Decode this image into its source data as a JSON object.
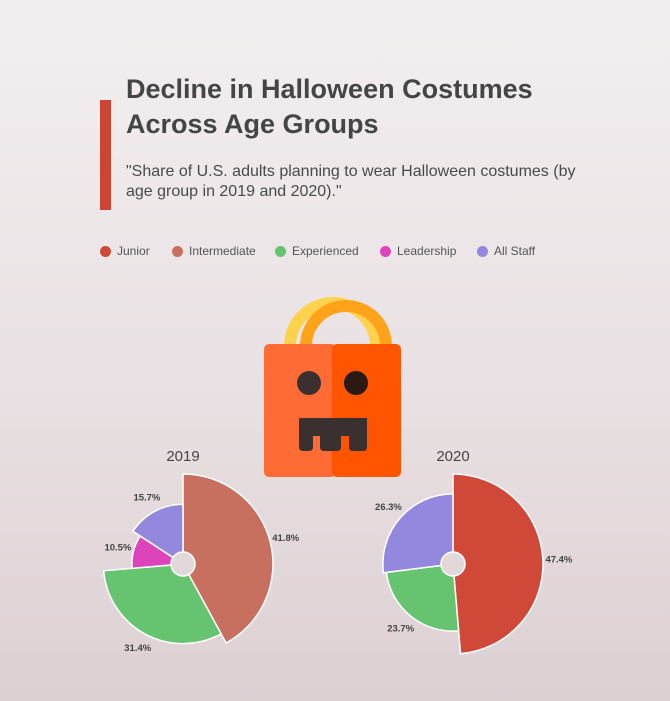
{
  "title": "Decline in Halloween Costumes Across Age Groups",
  "subtitle": "\"Share of U.S. adults planning to wear Halloween costumes (by age group in 2019 and 2020).\"",
  "colors": {
    "accent": "#cc4433",
    "bag_left": "#ff6b35",
    "bag_right": "#ff5500",
    "handle_left": "#ffd24d",
    "handle_right": "#ffa31a"
  },
  "decoration": {
    "icon": "halloween-bag-icon"
  },
  "chart_data": {
    "type": "pie",
    "variant": "radius-scaled pie (nightingale-style) with small hole",
    "legend": [
      {
        "name": "Junior",
        "color": "#d04838"
      },
      {
        "name": "Intermediate",
        "color": "#c87060"
      },
      {
        "name": "Experienced",
        "color": "#66c370"
      },
      {
        "name": "Leadership",
        "color": "#dd44bb"
      },
      {
        "name": "All Staff",
        "color": "#9388dd"
      }
    ],
    "charts": [
      {
        "title": "2019",
        "slices": [
          {
            "name": "Intermediate",
            "value": 41.8,
            "label": "41.8%"
          },
          {
            "name": "Experienced",
            "value": 31.4,
            "label": "31.4%"
          },
          {
            "name": "Leadership",
            "value": 10.5,
            "label": "10.5%"
          },
          {
            "name": "All Staff",
            "value": 15.7,
            "label": "15.7%"
          }
        ]
      },
      {
        "title": "2020",
        "slices": [
          {
            "name": "Junior",
            "value": 47.4,
            "label": "47.4%"
          },
          {
            "name": "Experienced",
            "value": 23.7,
            "label": "23.7%"
          },
          {
            "name": "All Staff",
            "value": 26.3,
            "label": "26.3%"
          }
        ]
      }
    ]
  }
}
